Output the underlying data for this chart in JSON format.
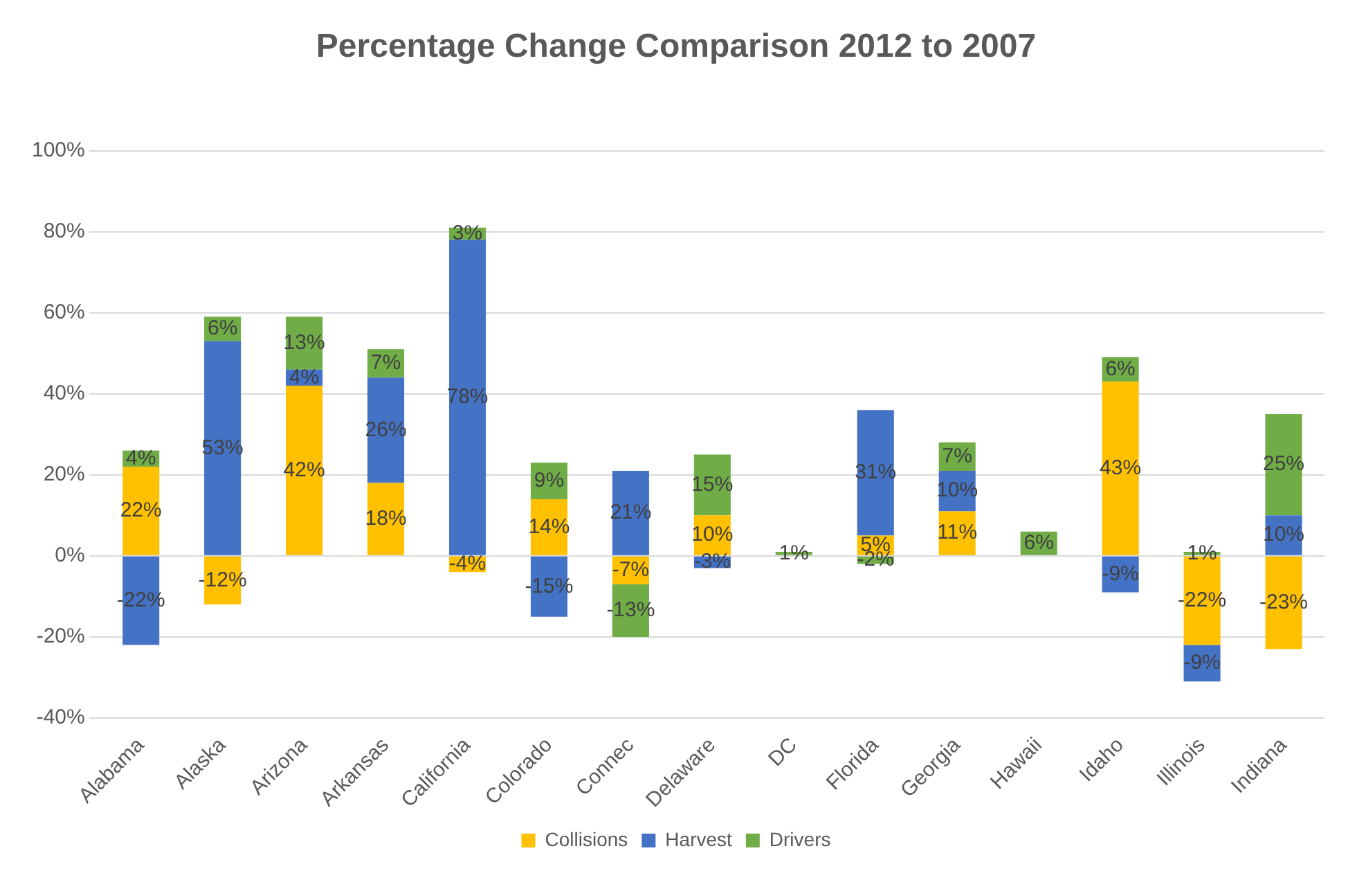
{
  "chart_data": {
    "type": "bar",
    "title": "Percentage Change Comparison 2012 to 2007",
    "stacked": true,
    "grid": "y",
    "legend": "bottom",
    "categories": [
      "Alabama",
      "Alaska",
      "Arizona",
      "Arkansas",
      "California",
      "Colorado",
      "Connec",
      "Delaware",
      "DC",
      "Florida",
      "Georgia",
      "Hawaii",
      "Idaho",
      "Illinois",
      "Indiana"
    ],
    "ylim": [
      -40,
      100
    ],
    "yticks": [
      {
        "value": -40,
        "label": "-40%"
      },
      {
        "value": -20,
        "label": "-20%"
      },
      {
        "value": 0,
        "label": "0%"
      },
      {
        "value": 20,
        "label": "20%"
      },
      {
        "value": 40,
        "label": "40%"
      },
      {
        "value": 60,
        "label": "60%"
      },
      {
        "value": 80,
        "label": "80%"
      },
      {
        "value": 100,
        "label": "100%"
      }
    ],
    "series": [
      {
        "name": "Collisions",
        "color": "#ffc000",
        "values": [
          22,
          -12,
          42,
          18,
          -4,
          14,
          -7,
          10,
          null,
          5,
          11,
          null,
          43,
          -22,
          -23
        ],
        "value_labels": [
          "22%",
          "-12%",
          "42%",
          "18%",
          "-4%",
          "14%",
          "-7%",
          "10%",
          null,
          "5%",
          "11%",
          null,
          "43%",
          "-22%",
          "-23%"
        ]
      },
      {
        "name": "Harvest",
        "color": "#4472c4",
        "values": [
          -22,
          53,
          4,
          26,
          78,
          -15,
          21,
          -3,
          null,
          31,
          10,
          null,
          -9,
          -9,
          10
        ],
        "value_labels": [
          "-22%",
          "53%",
          "4%",
          "26%",
          "78%",
          "-15%",
          "21%",
          "-3%",
          null,
          "31%",
          "10%",
          null,
          "-9%",
          "-9%",
          "10%"
        ]
      },
      {
        "name": "Drivers",
        "color": "#70ad47",
        "values": [
          4,
          6,
          13,
          7,
          3,
          9,
          -13,
          15,
          1,
          -2,
          7,
          6,
          6,
          1,
          25
        ],
        "value_labels": [
          "4%",
          "6%",
          "13%",
          "7%",
          "3%",
          "9%",
          "-13%",
          "15%",
          "1%",
          "-2%",
          "7%",
          "6%",
          "6%",
          "1%",
          "25%"
        ]
      }
    ]
  }
}
